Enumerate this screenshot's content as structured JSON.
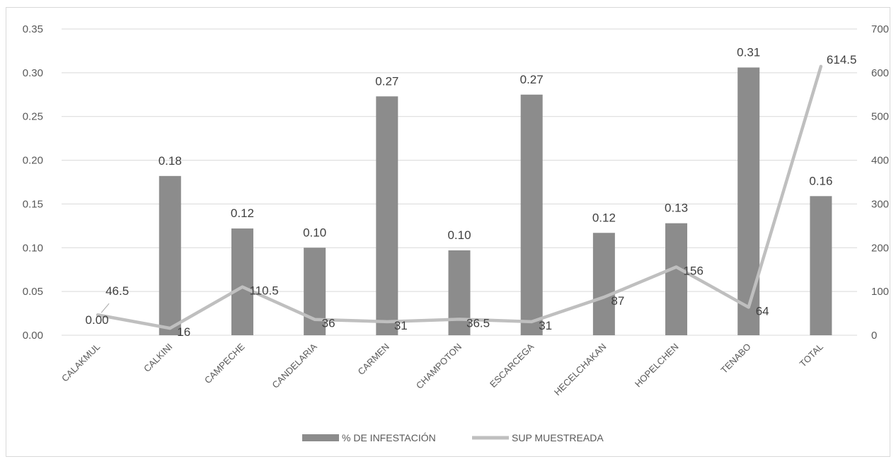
{
  "chart_data": {
    "type": "bar",
    "categories": [
      "CALAKMUL",
      "CALKINI",
      "CAMPECHE",
      "CANDELARIA",
      "CARMEN",
      "CHAMPOTON",
      "ESCARCEGA",
      "HECELCHAKAN",
      "HOPELCHEN",
      "TENABO",
      "TOTAL"
    ],
    "series": [
      {
        "name": "% DE INFESTACIÓN",
        "type": "bar",
        "axis": "left",
        "color": "#8c8c8c",
        "values": [
          0.0,
          0.182,
          0.122,
          0.1,
          0.273,
          0.097,
          0.275,
          0.117,
          0.128,
          0.306,
          0.159
        ],
        "labels": [
          "0.00",
          "0.18",
          "0.12",
          "0.10",
          "0.27",
          "0.10",
          "0.27",
          "0.12",
          "0.13",
          "0.31",
          "0.16"
        ]
      },
      {
        "name": "SUP MUESTREADA",
        "type": "line",
        "axis": "right",
        "color": "#bfbfbf",
        "values": [
          46.5,
          16,
          110.5,
          36,
          31,
          36.5,
          31,
          87,
          156,
          64,
          614.5
        ],
        "labels": [
          "46.5",
          "16",
          "110.5",
          "36",
          "31",
          "36.5",
          "31",
          "87",
          "156",
          "64",
          "614.5"
        ]
      }
    ],
    "y_left": {
      "min": 0,
      "max": 0.35,
      "ticks": [
        "0.00",
        "0.05",
        "0.10",
        "0.15",
        "0.20",
        "0.25",
        "0.30",
        "0.35"
      ]
    },
    "y_right": {
      "min": 0,
      "max": 700,
      "ticks": [
        "0",
        "100",
        "200",
        "300",
        "400",
        "500",
        "600",
        "700"
      ]
    },
    "title": "",
    "xlabel": "",
    "ylabel": "",
    "grid": true,
    "legend": "bottom"
  }
}
